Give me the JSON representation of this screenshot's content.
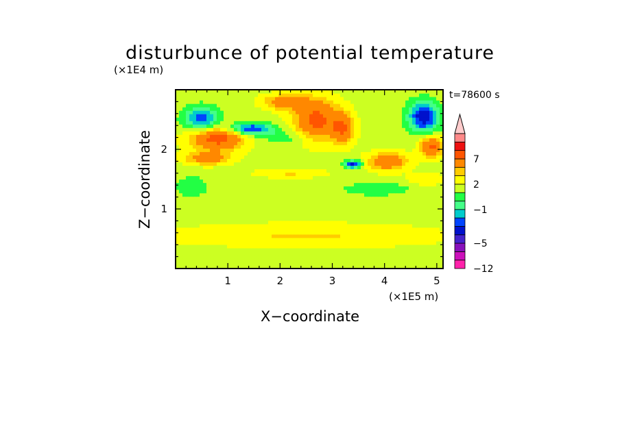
{
  "chart_data": {
    "type": "heatmap",
    "title": "disturbunce of potential temperature",
    "xlabel": "X−coordinate",
    "ylabel": "Z−coordinate",
    "x_unit": "(×1E5 m)",
    "y_unit": "(×1E4 m)",
    "time_label": "t=78600 s",
    "xlim": [
      0,
      5.12
    ],
    "ylim": [
      0,
      3.0
    ],
    "x_ticks": [
      1,
      2,
      3,
      4,
      5
    ],
    "y_ticks": [
      1,
      2
    ],
    "x_tick_labels": [
      "1",
      "2",
      "3",
      "4",
      "5"
    ],
    "y_tick_labels": [
      "1",
      "2"
    ],
    "colorbar": {
      "levels": [
        -12,
        -9,
        -7,
        -5,
        -4,
        -3,
        -2,
        -1,
        0,
        1,
        2,
        3,
        5,
        7,
        9,
        12
      ],
      "tick_values": [
        -12,
        -5,
        -1,
        2,
        7
      ],
      "tick_labels": [
        "−12",
        "−5",
        "−1",
        "2",
        "7"
      ],
      "colors": [
        "#ff22aa",
        "#cc11bb",
        "#8811bb",
        "#4422cc",
        "#0011cc",
        "#0044ff",
        "#00cccc",
        "#44ff88",
        "#22ff44",
        "#ccff22",
        "#ffff00",
        "#ffcc00",
        "#ff8800",
        "#ff5500",
        "#ee1111",
        "#ff8888",
        "#ffcccc"
      ],
      "extend": "max"
    },
    "regions": [
      {
        "x": 0.8,
        "z": 2.2,
        "rx": 0.6,
        "rz": 0.25,
        "v": 5.5
      },
      {
        "x": 0.5,
        "z": 2.5,
        "rx": 0.4,
        "rz": 0.25,
        "v": -4.5
      },
      {
        "x": 1.4,
        "z": 2.35,
        "rx": 0.55,
        "rz": 0.12,
        "v": -5
      },
      {
        "x": 2.7,
        "z": 2.5,
        "rx": 0.5,
        "rz": 0.4,
        "v": 5
      },
      {
        "x": 2.1,
        "z": 2.8,
        "rx": 0.5,
        "rz": 0.15,
        "v": 3.5
      },
      {
        "x": 3.2,
        "z": 2.35,
        "rx": 0.25,
        "rz": 0.3,
        "v": 4
      },
      {
        "x": 2.1,
        "z": 2.2,
        "rx": 0.6,
        "rz": 0.15,
        "v": -1.2
      },
      {
        "x": 3.4,
        "z": 1.75,
        "rx": 0.2,
        "rz": 0.08,
        "v": -5
      },
      {
        "x": 4.05,
        "z": 1.8,
        "rx": 0.45,
        "rz": 0.18,
        "v": 4
      },
      {
        "x": 4.75,
        "z": 2.55,
        "rx": 0.35,
        "rz": 0.3,
        "v": -5.5
      },
      {
        "x": 4.9,
        "z": 2.05,
        "rx": 0.25,
        "rz": 0.2,
        "v": 5
      },
      {
        "x": 3.9,
        "z": 1.35,
        "rx": 0.7,
        "rz": 0.12,
        "v": -1.3
      },
      {
        "x": 0.3,
        "z": 1.4,
        "rx": 0.35,
        "rz": 0.2,
        "v": -1.2
      },
      {
        "x": 2.2,
        "z": 1.2,
        "rx": 3.0,
        "rz": 0.3,
        "v": -0.4
      },
      {
        "x": 2.2,
        "z": 0.25,
        "rx": 3.2,
        "rz": 0.15,
        "v": -0.4
      },
      {
        "x": 2.5,
        "z": 0.55,
        "rx": 3.0,
        "rz": 0.25,
        "v": 1.5
      },
      {
        "x": 2.2,
        "z": 1.6,
        "rx": 0.8,
        "rz": 0.1,
        "v": 1.5
      },
      {
        "x": 0.6,
        "z": 1.85,
        "rx": 0.5,
        "rz": 0.12,
        "v": 3.5
      },
      {
        "x": 4.8,
        "z": 1.5,
        "rx": 0.4,
        "rz": 0.12,
        "v": 1.5
      }
    ],
    "background_value": 0.6
  }
}
